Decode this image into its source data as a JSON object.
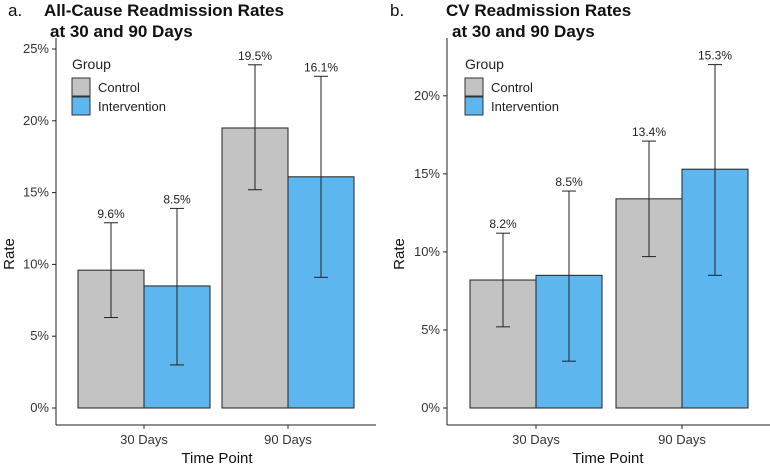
{
  "chart_data": [
    {
      "type": "bar",
      "panel_label": "a.",
      "title_lines": [
        "All-Cause Readmission Rates",
        "at 30 and 90 Days"
      ],
      "xlabel": "Time Point",
      "ylabel": "Rate",
      "categories": [
        "30 Days",
        "90 Days"
      ],
      "ylim": [
        0,
        25
      ],
      "yticks": [
        "0%",
        "5%",
        "10%",
        "15%",
        "20%",
        "25%"
      ],
      "legend": {
        "title": "Group",
        "position": "top-left"
      },
      "series": [
        {
          "name": "Control",
          "color": "#c3c3c3",
          "values": [
            9.6,
            19.5
          ],
          "labels": [
            "9.6%",
            "19.5%"
          ],
          "err_low": [
            6.3,
            15.2
          ],
          "err_high": [
            12.9,
            23.9
          ]
        },
        {
          "name": "Intervention",
          "color": "#5db6ee",
          "values": [
            8.5,
            16.1
          ],
          "labels": [
            "8.5%",
            "16.1%"
          ],
          "err_low": [
            3.0,
            9.1
          ],
          "err_high": [
            13.9,
            23.1
          ]
        }
      ]
    },
    {
      "type": "bar",
      "panel_label": "b.",
      "title_lines": [
        "CV Readmission Rates",
        "at 30 and 90 Days"
      ],
      "xlabel": "Time Point",
      "ylabel": "Rate",
      "categories": [
        "30 Days",
        "90 Days"
      ],
      "ylim": [
        0,
        23
      ],
      "yticks": [
        "0%",
        "5%",
        "10%",
        "15%",
        "20%"
      ],
      "legend": {
        "title": "Group",
        "position": "top-left"
      },
      "series": [
        {
          "name": "Control",
          "color": "#c3c3c3",
          "values": [
            8.2,
            13.4
          ],
          "labels": [
            "8.2%",
            "13.4%"
          ],
          "err_low": [
            5.2,
            9.7
          ],
          "err_high": [
            11.2,
            17.1
          ]
        },
        {
          "name": "Intervention",
          "color": "#5db6ee",
          "values": [
            8.5,
            15.3
          ],
          "labels": [
            "8.5%",
            "15.3%"
          ],
          "err_low": [
            3.0,
            8.5
          ],
          "err_high": [
            13.9,
            22.0
          ]
        }
      ]
    }
  ]
}
